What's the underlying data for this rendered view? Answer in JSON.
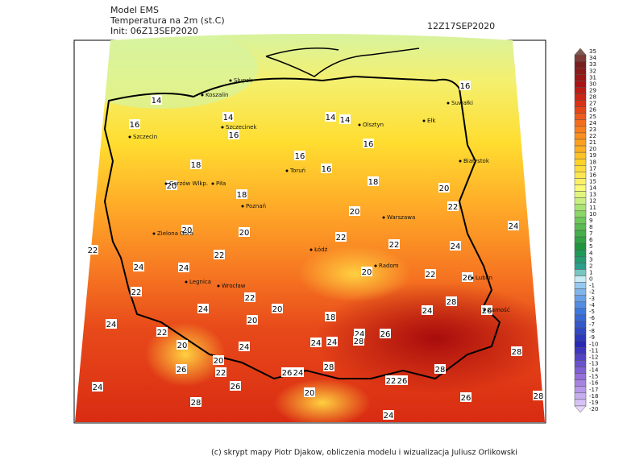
{
  "header": {
    "model": "Model EMS",
    "field": "Temperatura na 2m (st.C)",
    "init": "Init: 06Z13SEP2020",
    "valid": "12Z17SEP2020"
  },
  "footer": "(c) skrypt mapy Piotr Djakow, obliczenia modelu i wizualizacja Juliusz Orlikowski",
  "colorbar": {
    "labels": [
      35,
      34,
      33,
      32,
      31,
      30,
      29,
      28,
      27,
      26,
      25,
      24,
      23,
      22,
      21,
      20,
      19,
      18,
      17,
      16,
      15,
      14,
      13,
      12,
      11,
      10,
      9,
      8,
      7,
      6,
      5,
      4,
      3,
      2,
      1,
      0,
      -1,
      -2,
      -3,
      -4,
      -5,
      -6,
      -7,
      -8,
      -9,
      -10,
      -11,
      -12,
      -13,
      -14,
      -15,
      -16,
      -17,
      -18,
      -19,
      -20
    ]
  },
  "contour_labels": [
    16,
    14,
    14,
    14,
    14,
    16,
    16,
    16,
    16,
    16,
    18,
    18,
    20,
    20,
    18,
    20,
    22,
    20,
    20,
    22,
    24,
    22,
    22,
    22,
    24,
    24,
    24,
    20,
    22,
    26,
    22,
    22,
    24,
    20,
    28,
    26,
    24,
    18,
    20,
    24,
    22,
    24,
    26,
    24,
    24,
    28,
    20,
    24,
    28,
    20,
    22,
    26,
    26,
    24,
    28,
    28,
    22,
    26,
    26,
    24,
    20,
    26,
    28,
    28,
    24
  ],
  "cities": [
    "Słupsk",
    "Koszalin",
    "Szczecinek",
    "Szczecin",
    "Olsztyn",
    "Ełk",
    "Suwałki",
    "Białystok",
    "Toruń",
    "Piła",
    "Gorzów Wlkp.",
    "Poznań",
    "Warszawa",
    "Zielona Góra",
    "Legnica",
    "Wrocław",
    "Łódź",
    "Radom",
    "Lublin",
    "Zamość"
  ]
}
